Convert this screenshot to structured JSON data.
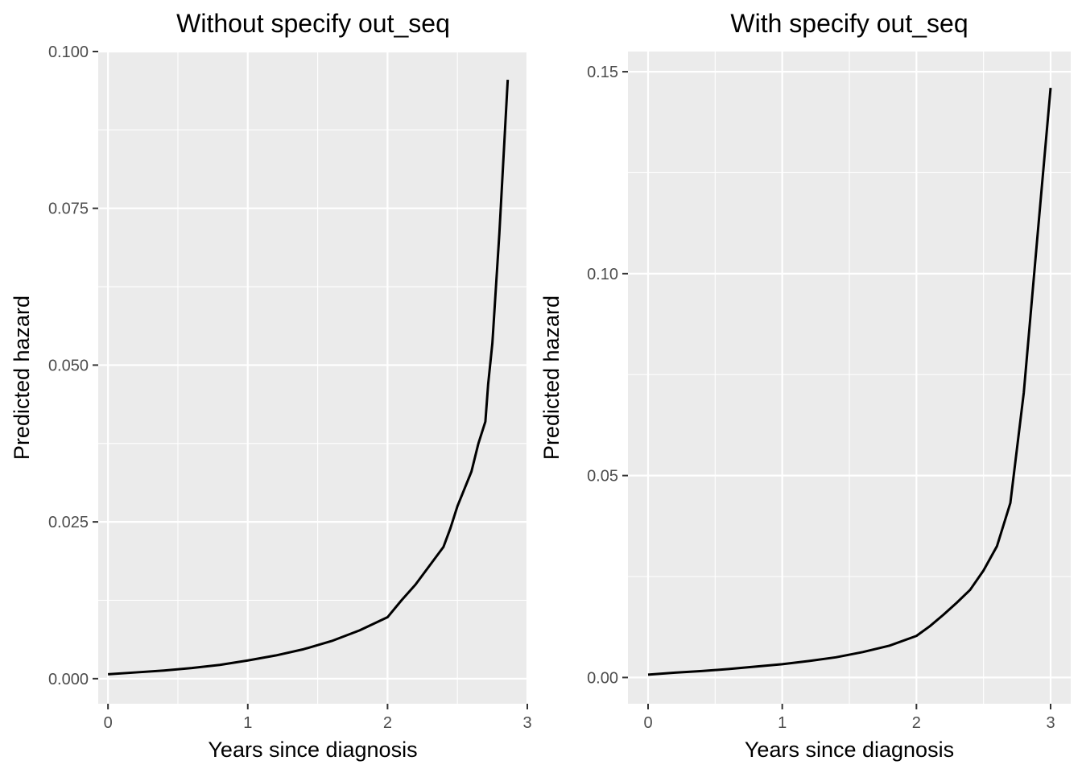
{
  "chart_data": [
    {
      "type": "line",
      "title": "Without specify out_seq",
      "xlabel": "Years since diagnosis",
      "ylabel": "Predicted hazard",
      "xlim": [
        -0.07,
        3.0
      ],
      "ylim": [
        -0.004,
        0.1
      ],
      "x_ticks": [
        0,
        1,
        2,
        3
      ],
      "x_tick_labels": [
        "0",
        "1",
        "2",
        "3"
      ],
      "y_ticks": [
        0,
        0.025,
        0.05,
        0.075,
        0.1
      ],
      "y_tick_labels": [
        "0.000",
        "0.025",
        "0.050",
        "0.075",
        "0.100"
      ],
      "grid": true,
      "series": [
        {
          "x": [
            0.0,
            0.2,
            0.4,
            0.6,
            0.8,
            1.0,
            1.2,
            1.4,
            1.6,
            1.8,
            2.0,
            2.1,
            2.2,
            2.3,
            2.4,
            2.45,
            2.5,
            2.6,
            2.65,
            2.7,
            2.72,
            2.75,
            2.8,
            2.86
          ],
          "y": [
            0.0007,
            0.001,
            0.0013,
            0.0017,
            0.0022,
            0.0029,
            0.0037,
            0.0047,
            0.006,
            0.0077,
            0.0098,
            0.0125,
            0.015,
            0.018,
            0.021,
            0.024,
            0.0275,
            0.033,
            0.0375,
            0.041,
            0.047,
            0.0535,
            0.071,
            0.0955
          ]
        }
      ]
    },
    {
      "type": "line",
      "title": "With specify out_seq",
      "xlabel": "Years since diagnosis",
      "ylabel": "Predicted hazard",
      "xlim": [
        -0.15,
        3.15
      ],
      "ylim": [
        -0.0065,
        0.155
      ],
      "x_ticks": [
        0,
        1,
        2,
        3
      ],
      "x_tick_labels": [
        "0",
        "1",
        "2",
        "3"
      ],
      "y_ticks": [
        0,
        0.05,
        0.1,
        0.15
      ],
      "y_tick_labels": [
        "0.00",
        "0.05",
        "0.10",
        "0.15"
      ],
      "grid": true,
      "series": [
        {
          "x": [
            0.0,
            0.2,
            0.4,
            0.6,
            0.8,
            1.0,
            1.2,
            1.4,
            1.6,
            1.8,
            2.0,
            2.1,
            2.2,
            2.3,
            2.4,
            2.5,
            2.6,
            2.7,
            2.8,
            2.9,
            3.0
          ],
          "y": [
            0.0007,
            0.0012,
            0.0016,
            0.0021,
            0.0027,
            0.0033,
            0.0041,
            0.005,
            0.0063,
            0.0079,
            0.0103,
            0.0127,
            0.0155,
            0.0185,
            0.0217,
            0.0265,
            0.0325,
            0.0432,
            0.0705,
            0.1085,
            0.146
          ]
        }
      ]
    }
  ]
}
